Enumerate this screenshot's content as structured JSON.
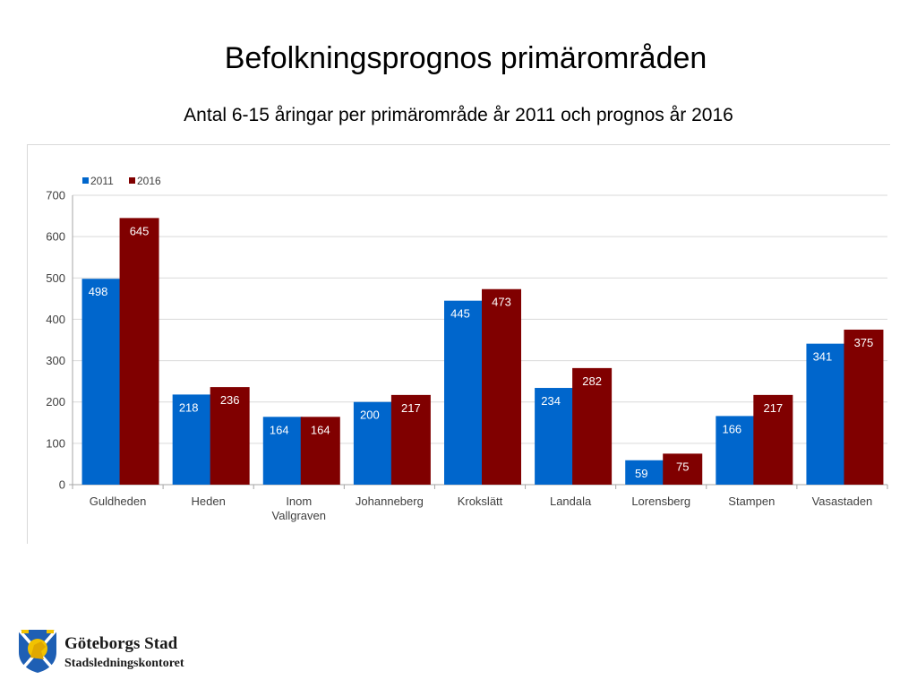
{
  "slide": {
    "title": "Befolkningsprognos primärområden",
    "subtitle": "Antal 6-15 åringar per primärområde år 2011 och prognos år 2016"
  },
  "footer": {
    "org_name": "Göteborgs Stad",
    "department": "Stadsledningskontoret"
  },
  "chart_data": {
    "type": "bar",
    "title": "",
    "xlabel": "",
    "ylabel": "",
    "categories": [
      "Guldheden",
      "Heden",
      "Inom Vallgraven",
      "Johanneberg",
      "Krokslätt",
      "Landala",
      "Lorensberg",
      "Stampen",
      "Vasastaden"
    ],
    "series": [
      {
        "name": "2011",
        "color": "#0066cc",
        "values": [
          498,
          218,
          164,
          200,
          445,
          234,
          59,
          166,
          341
        ]
      },
      {
        "name": "2016",
        "color": "#800000",
        "values": [
          645,
          236,
          164,
          217,
          473,
          282,
          75,
          217,
          375
        ]
      }
    ],
    "ylim": [
      0,
      700
    ],
    "yticks": [
      0,
      100,
      200,
      300,
      400,
      500,
      600,
      700
    ],
    "grid": true,
    "legend_position": "top-left",
    "data_labels": true
  }
}
